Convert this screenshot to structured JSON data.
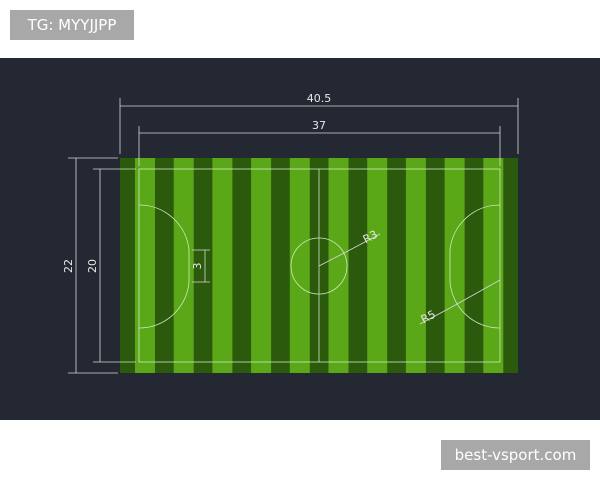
{
  "header": {
    "tag": "TG: MYYJJPP"
  },
  "diagram": {
    "dimensions": {
      "total_length": "40.5",
      "field_length": "37",
      "total_width": "22",
      "field_width": "20",
      "penalty_spot": "3",
      "center_radius": "R3",
      "penalty_radius": "R5"
    }
  },
  "footer": {
    "watermark": "best-vsport.com"
  }
}
